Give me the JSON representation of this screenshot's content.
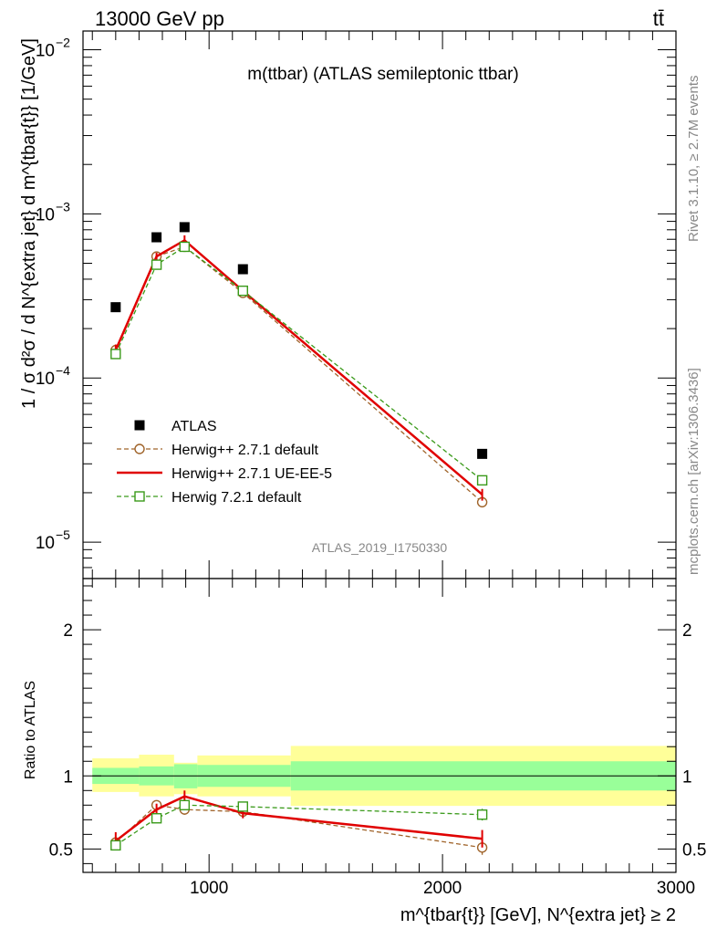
{
  "header": {
    "left": "13000 GeV pp",
    "right": "tt̄"
  },
  "side": {
    "rivet": "Rivet 3.1.10, ≥ 2.7M events",
    "mcplots": "mcplots.cern.ch [arXiv:1306.3436]"
  },
  "chart_data": {
    "type": "line",
    "title": "m(ttbar) (ATLAS semileptonic ttbar)",
    "analysis_label": "ATLAS_2019_I1750330",
    "xlabel": "m^{tbar{t}} [GeV], N^{extra jet} ≥ 2",
    "xlim": [
      460,
      3000
    ],
    "xticks": [
      1000,
      2000,
      3000
    ],
    "main": {
      "ylabel": "1 / σ d²σ / d N^{extra jet} d m^{tbar{t}} [1/GeV]",
      "yscale": "log",
      "ylim": [
        6e-06,
        0.013
      ],
      "yticks": [
        {
          "value": 1e-05,
          "base": "10",
          "exp": "−5"
        },
        {
          "value": 0.0001,
          "base": "10",
          "exp": "−4"
        },
        {
          "value": 0.001,
          "base": "10",
          "exp": "−3"
        },
        {
          "value": 0.01,
          "base": "10",
          "exp": "−2"
        }
      ],
      "legend_placement": "bottom-left",
      "series": [
        {
          "name": "ATLAS",
          "style": "data",
          "color": "#000000",
          "x": [
            600,
            775,
            895,
            1145,
            2170
          ],
          "y": [
            0.00027,
            0.00072,
            0.00083,
            0.00046,
            3.45e-05
          ]
        },
        {
          "name": "Herwig++ 2.7.1 default",
          "style": "circle-dashed",
          "color": "#a0642a",
          "x": [
            600,
            775,
            895,
            1145,
            2170
          ],
          "y": [
            0.000148,
            0.00055,
            0.00063,
            0.00033,
            1.75e-05
          ],
          "err": [
            6.5e-06,
            2e-05,
            2.5e-05,
            1.2e-05,
            1.2e-06
          ]
        },
        {
          "name": "Herwig++ 2.7.1 UE-EE-5",
          "style": "solid",
          "color": "#e00000",
          "x": [
            600,
            775,
            895,
            1145,
            2170
          ],
          "y": [
            0.000148,
            0.00055,
            0.00069,
            0.00034,
            1.95e-05
          ],
          "err": [
            1.2e-05,
            3e-05,
            5e-05,
            1.5e-05,
            1.6e-06
          ]
        },
        {
          "name": "Herwig 7.2.1 default",
          "style": "square-dashed",
          "color": "#3a9a1a",
          "x": [
            600,
            775,
            895,
            1145,
            2170
          ],
          "y": [
            0.00014,
            0.00049,
            0.00063,
            0.00034,
            2.38e-05
          ],
          "err": [
            6.5e-06,
            2e-05,
            2.5e-05,
            1.2e-05,
            1.3e-06
          ]
        }
      ]
    },
    "ratio": {
      "ylabel": "Ratio to ATLAS",
      "ylim": [
        0.34,
        2.35
      ],
      "yticks": [
        0.5,
        1,
        2
      ],
      "ytick_labels": [
        "0.5",
        "1",
        "2"
      ],
      "bands": {
        "edges": [
          500,
          700,
          850,
          950,
          1350,
          3000
        ],
        "inner": [
          [
            0.945,
            1.055
          ],
          [
            0.935,
            1.065
          ],
          [
            0.915,
            1.08
          ],
          [
            0.925,
            1.075
          ],
          [
            0.9,
            1.1
          ]
        ],
        "outer": [
          [
            0.89,
            1.12
          ],
          [
            0.86,
            1.145
          ],
          [
            0.875,
            1.09
          ],
          [
            0.86,
            1.14
          ],
          [
            0.795,
            1.205
          ]
        ]
      },
      "series": [
        {
          "name": "Herwig++ 2.7.1 default",
          "style": "circle-dashed",
          "color": "#a0642a",
          "x": [
            600,
            775,
            895,
            1145,
            2170
          ],
          "y": [
            0.545,
            0.8,
            0.77,
            0.755,
            0.51
          ],
          "err": [
            0.035,
            0.03,
            0.035,
            0.025,
            0.05
          ]
        },
        {
          "name": "Herwig++ 2.7.1 UE-EE-5",
          "style": "solid",
          "color": "#e00000",
          "x": [
            600,
            775,
            895,
            1145,
            2170
          ],
          "y": [
            0.555,
            0.77,
            0.86,
            0.745,
            0.57
          ],
          "err": [
            0.06,
            0.04,
            0.04,
            0.035,
            0.06
          ]
        },
        {
          "name": "Herwig 7.2.1 default",
          "style": "square-dashed",
          "color": "#3a9a1a",
          "x": [
            600,
            775,
            895,
            1145,
            2170
          ],
          "y": [
            0.525,
            0.71,
            0.8,
            0.79,
            0.735
          ],
          "err": [
            0.035,
            0.03,
            0.03,
            0.025,
            0.04
          ]
        }
      ]
    }
  }
}
